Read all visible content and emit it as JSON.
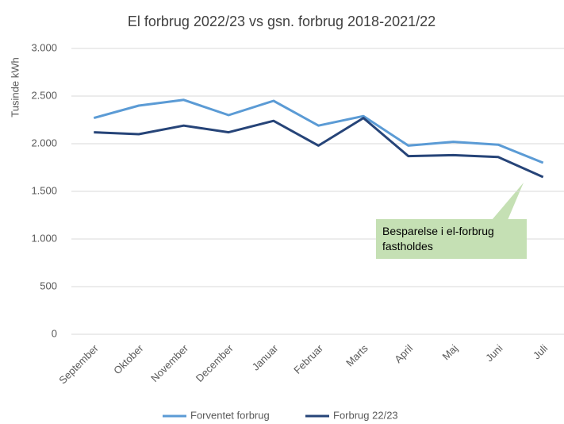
{
  "chart_data": {
    "type": "line",
    "title": "El forbrug 2022/23 vs gsn. forbrug 2018-2021/22",
    "y_label": "Tusinde kWh",
    "annotation": "Besparelse i el-forbrug fastholdes",
    "categories": [
      "September",
      "Oktober",
      "November",
      "December",
      "Januar",
      "Februar",
      "Marts",
      "April",
      "Maj",
      "Juni",
      "Juli"
    ],
    "series": [
      {
        "name": "Forventet forbrug",
        "color": "#5b9bd5",
        "values": [
          2270,
          2400,
          2460,
          2300,
          2450,
          2190,
          2290,
          1980,
          2020,
          1990,
          1800
        ]
      },
      {
        "name": "Forbrug 22/23",
        "color": "#264478",
        "values": [
          2120,
          2100,
          2190,
          2120,
          2240,
          1980,
          2270,
          1870,
          1880,
          1860,
          1650
        ]
      }
    ],
    "ylim": [
      0,
      3000
    ],
    "yticks": [
      0,
      500,
      {
        "value": 1000,
        "label": "1.000"
      },
      {
        "value": 1500,
        "label": "1.500"
      },
      {
        "value": 2000,
        "label": "2.000"
      },
      {
        "value": 2500,
        "label": "2.500"
      },
      {
        "value": 3000,
        "label": "3.000"
      }
    ],
    "grid": true,
    "legend": "bottom"
  }
}
